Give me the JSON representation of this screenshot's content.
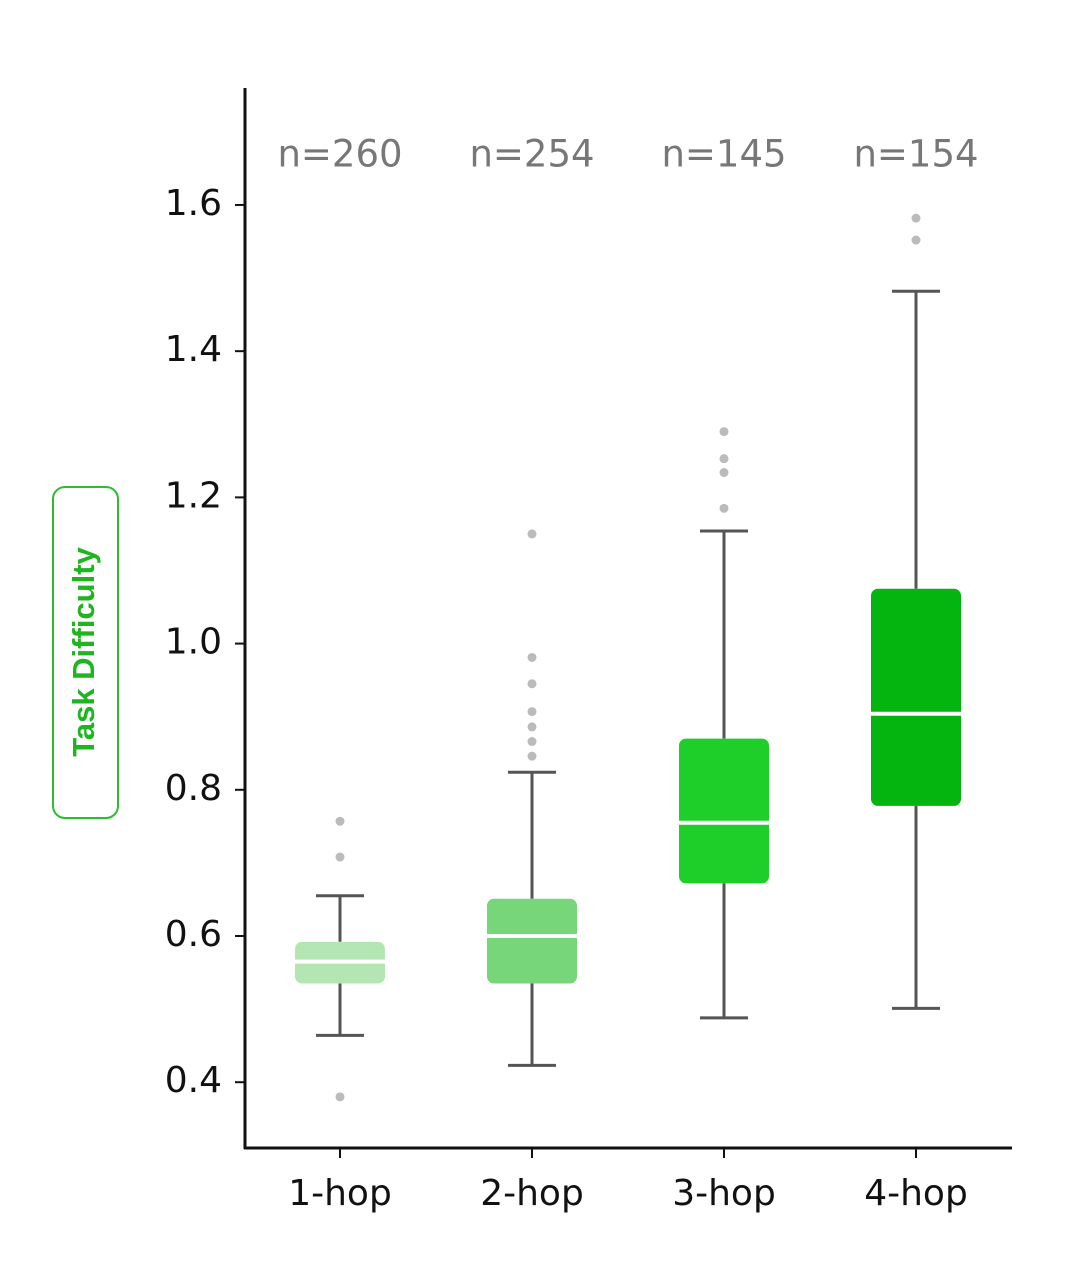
{
  "chart_data": {
    "type": "box",
    "y_label": "Task Difficulty",
    "categories": [
      "1-hop",
      "2-hop",
      "3-hop",
      "4-hop"
    ],
    "annotations": [
      "n=260",
      "n=254",
      "n=145",
      "n=154"
    ],
    "colors": [
      "#b3e6b3",
      "#77d67a",
      "#1ecf2a",
      "#04b40f"
    ],
    "whisker_low": [
      0.464,
      0.423,
      0.488,
      0.501
    ],
    "q1": [
      0.535,
      0.535,
      0.672,
      0.778
    ],
    "median": [
      0.565,
      0.6,
      0.755,
      0.904
    ],
    "q3": [
      0.592,
      0.651,
      0.87,
      1.075
    ],
    "whisker_high": [
      0.655,
      0.824,
      1.154,
      1.482
    ],
    "outliers": [
      [
        0.757,
        0.708,
        0.38
      ],
      [
        1.15,
        0.981,
        0.945,
        0.907,
        0.886,
        0.866,
        0.846
      ],
      [
        1.29,
        1.253,
        1.234,
        1.185
      ],
      [
        1.582,
        1.552
      ]
    ],
    "ylim": [
      0.31,
      1.76
    ],
    "yticks": [
      0.4,
      0.6,
      0.8,
      {
        "value": 1,
        "label": "1.0"
      },
      1.2,
      1.4,
      1.6
    ]
  }
}
